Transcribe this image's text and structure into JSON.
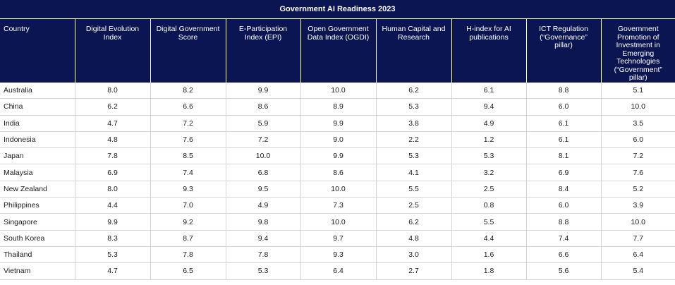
{
  "chart_data": {
    "type": "table",
    "title": "Government AI Readiness 2023",
    "columns": [
      "Country",
      "Digital Evolution Index",
      "Digital Government Score",
      "E-Participation Index (EPI)",
      "Open Government Data Index (OGDI)",
      "Human Capital and Research",
      "H-index for AI publications",
      "ICT Regulation (“Governance” pillar)",
      "Government Promotion of Investment in Emerging Technologies (“Government” pillar)"
    ],
    "rows": [
      {
        "country": "Australia",
        "values": [
          "8.0",
          "8.2",
          "9.9",
          "10.0",
          "6.2",
          "6.1",
          "8.8",
          "5.1"
        ]
      },
      {
        "country": "China",
        "values": [
          "6.2",
          "6.6",
          "8.6",
          "8.9",
          "5.3",
          "9.4",
          "6.0",
          "10.0"
        ]
      },
      {
        "country": "India",
        "values": [
          "4.7",
          "7.2",
          "5.9",
          "9.9",
          "3.8",
          "4.9",
          "6.1",
          "3.5"
        ]
      },
      {
        "country": "Indonesia",
        "values": [
          "4.8",
          "7.6",
          "7.2",
          "9.0",
          "2.2",
          "1.2",
          "6.1",
          "6.0"
        ]
      },
      {
        "country": "Japan",
        "values": [
          "7.8",
          "8.5",
          "10.0",
          "9.9",
          "5.3",
          "5.3",
          "8.1",
          "7.2"
        ]
      },
      {
        "country": "Malaysia",
        "values": [
          "6.9",
          "7.4",
          "6.8",
          "8.6",
          "4.1",
          "3.2",
          "6.9",
          "7.6"
        ]
      },
      {
        "country": "New Zealand",
        "values": [
          "8.0",
          "9.3",
          "9.5",
          "10.0",
          "5.5",
          "2.5",
          "8.4",
          "5.2"
        ]
      },
      {
        "country": "Philippines",
        "values": [
          "4.4",
          "7.0",
          "4.9",
          "7.3",
          "2.5",
          "0.8",
          "6.0",
          "3.9"
        ]
      },
      {
        "country": "Singapore",
        "values": [
          "9.9",
          "9.2",
          "9.8",
          "10.0",
          "6.2",
          "5.5",
          "8.8",
          "10.0"
        ]
      },
      {
        "country": "South Korea",
        "values": [
          "8.3",
          "8.7",
          "9.4",
          "9.7",
          "4.8",
          "4.4",
          "7.4",
          "7.7"
        ]
      },
      {
        "country": "Thailand",
        "values": [
          "5.3",
          "7.8",
          "7.8",
          "9.3",
          "3.0",
          "1.6",
          "6.6",
          "6.4"
        ]
      },
      {
        "country": "Vietnam",
        "values": [
          "4.7",
          "6.5",
          "5.3",
          "6.4",
          "2.7",
          "1.8",
          "5.6",
          "5.4"
        ]
      }
    ]
  },
  "colors": {
    "header_bg": "#0b1552",
    "header_text": "#ffffff",
    "grid": "#d3d6de"
  }
}
